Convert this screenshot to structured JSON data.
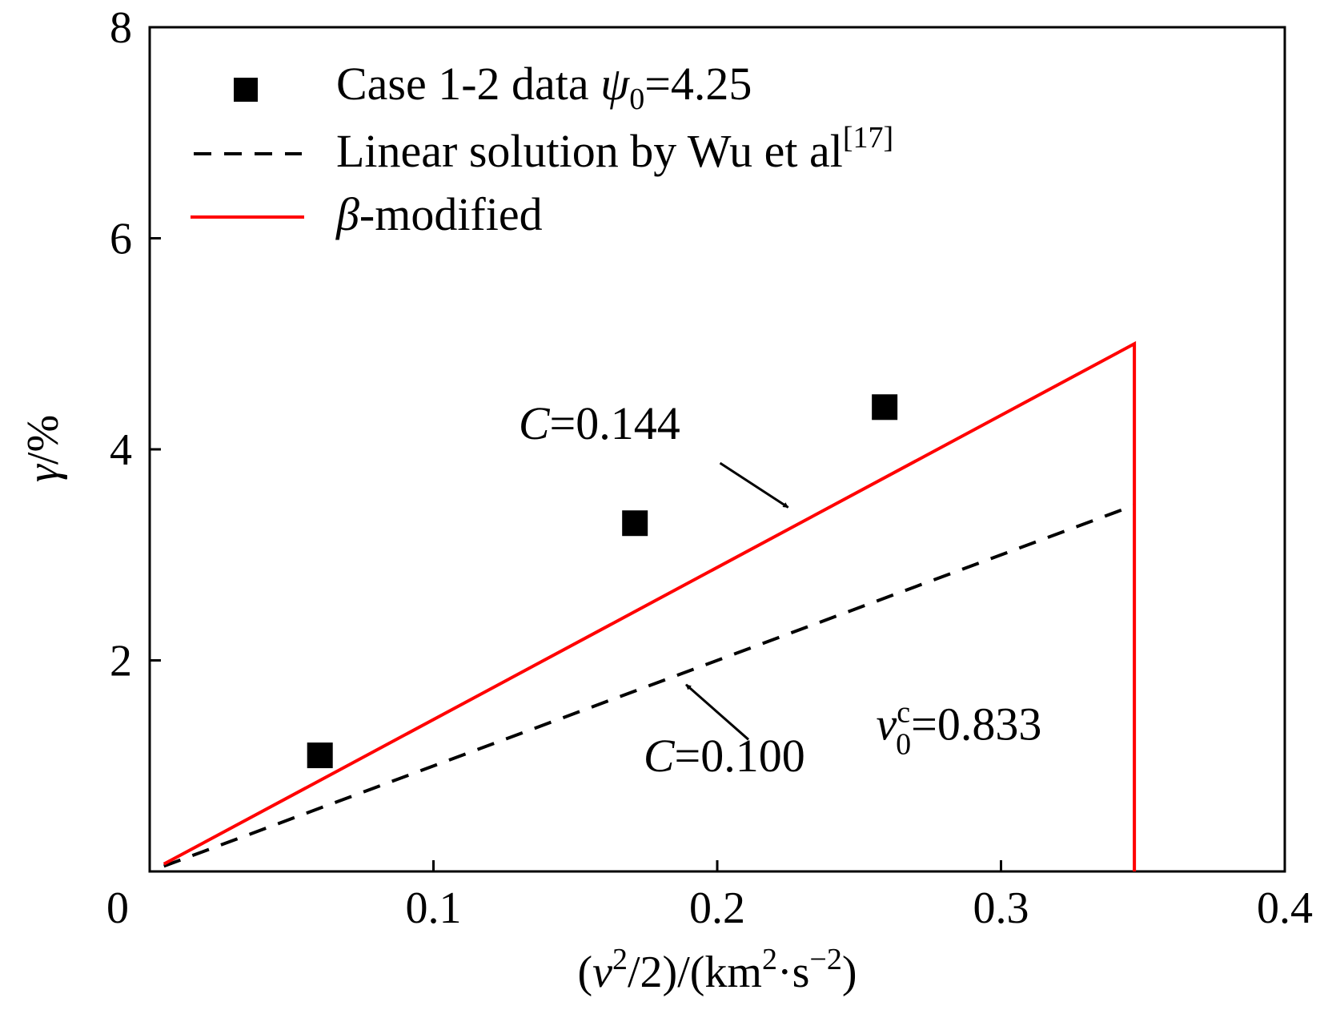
{
  "chart_data": {
    "type": "line",
    "xlabel": {
      "prefix": "(",
      "var": "v",
      "sup1": "2",
      "mid": "/2)/(km",
      "sup2": "2",
      "dot": "·s",
      "sup3": "−2",
      "suffix": ")"
    },
    "ylabel": {
      "var": "γ",
      "rest": "/%"
    },
    "xlim": [
      0,
      0.4
    ],
    "ylim": [
      0,
      8
    ],
    "xticks": [
      {
        "value": 0,
        "label": "0"
      },
      {
        "value": 0.1,
        "label": "0.1"
      },
      {
        "value": 0.2,
        "label": "0.2"
      },
      {
        "value": 0.3,
        "label": "0.3"
      },
      {
        "value": 0.4,
        "label": "0.4"
      }
    ],
    "yticks": [
      {
        "value": 2,
        "label": "2"
      },
      {
        "value": 4,
        "label": "4"
      },
      {
        "value": 6,
        "label": "6"
      },
      {
        "value": 8,
        "label": "8"
      }
    ],
    "grid": false,
    "legend_position": "top-left",
    "series": [
      {
        "name": "Case 1-2 data ψ0=4.25",
        "legend": {
          "pre": "Case 1-2 data ",
          "var": "ψ",
          "sub": "0",
          "post": "=4.25"
        },
        "kind": "scatter",
        "color": "#000000",
        "x": [
          0.06,
          0.171,
          0.259
        ],
        "y": [
          1.1,
          3.3,
          4.4
        ]
      },
      {
        "name": "Linear solution by Wu et al[17]",
        "legend": {
          "pre": "Linear solution by Wu et al",
          "sup": "[17]"
        },
        "kind": "line",
        "dash": true,
        "color": "#000000",
        "x": [
          0.005,
          0.347
        ],
        "y": [
          0.05,
          3.47
        ]
      },
      {
        "name": "β-modified",
        "legend": {
          "var": "β",
          "post": "-modified"
        },
        "kind": "line",
        "dash": false,
        "color": "#ff0000",
        "x": [
          0.005,
          0.347,
          0.347
        ],
        "y": [
          0.07,
          5.0,
          0
        ]
      }
    ],
    "annotations": [
      {
        "id": "c144",
        "var": "C",
        "text": "=0.144",
        "label_x": 0.13,
        "label_y": 4.1,
        "arrow_from": [
          0.201,
          3.87
        ],
        "arrow_to": [
          0.225,
          3.45
        ]
      },
      {
        "id": "c100",
        "var": "C",
        "text": "=0.100",
        "label_x": 0.174,
        "label_y": 0.95,
        "arrow_from": [
          0.211,
          1.25
        ],
        "arrow_to": [
          0.189,
          1.77
        ]
      },
      {
        "id": "vc",
        "var": "v",
        "sup": "c",
        "sub": "0",
        "text": "=0.833",
        "label_x": 0.256,
        "label_y": 1.25
      }
    ]
  }
}
